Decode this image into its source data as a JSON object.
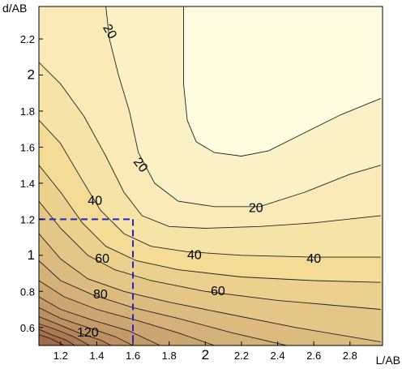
{
  "chart_data": {
    "type": "contour",
    "title": "",
    "xlabel": "L/AB",
    "ylabel": "d/AB",
    "xlim": [
      1.08,
      2.98
    ],
    "ylim": [
      0.5,
      2.38
    ],
    "xticks": [
      {
        "value": 1.2,
        "label": "1.2"
      },
      {
        "value": 1.4,
        "label": "1.4"
      },
      {
        "value": 1.6,
        "label": "1.6"
      },
      {
        "value": 1.8,
        "label": "1.8"
      },
      {
        "value": 2.0,
        "label": "2"
      },
      {
        "value": 2.2,
        "label": "2.2"
      },
      {
        "value": 2.4,
        "label": "2.4"
      },
      {
        "value": 2.6,
        "label": "2.6"
      },
      {
        "value": 2.8,
        "label": "2.8"
      }
    ],
    "yticks": [
      {
        "value": 0.6,
        "label": "0.6"
      },
      {
        "value": 0.8,
        "label": "0.8"
      },
      {
        "value": 1.0,
        "label": "1"
      },
      {
        "value": 1.2,
        "label": "1.2"
      },
      {
        "value": 1.4,
        "label": "1.4"
      },
      {
        "value": 1.6,
        "label": "1.6"
      },
      {
        "value": 1.8,
        "label": "1.8"
      },
      {
        "value": 2.0,
        "label": "2"
      },
      {
        "value": 2.2,
        "label": "2.2"
      }
    ],
    "contour_labels": [
      {
        "text": "20",
        "x": 1.47,
        "y": 2.24,
        "angle": 60
      },
      {
        "text": "20",
        "x": 1.64,
        "y": 1.5,
        "angle": 52
      },
      {
        "text": "20",
        "x": 2.28,
        "y": 1.26,
        "angle": 0
      },
      {
        "text": "40",
        "x": 1.39,
        "y": 1.3,
        "angle": 0
      },
      {
        "text": "40",
        "x": 1.94,
        "y": 1.0,
        "angle": 0
      },
      {
        "text": "40",
        "x": 2.6,
        "y": 0.98,
        "angle": 0
      },
      {
        "text": "60",
        "x": 1.43,
        "y": 0.98,
        "angle": 0
      },
      {
        "text": "60",
        "x": 2.07,
        "y": 0.8,
        "angle": 0
      },
      {
        "text": "80",
        "x": 1.42,
        "y": 0.78,
        "angle": 0
      },
      {
        "text": "120",
        "x": 1.35,
        "y": 0.57,
        "angle": 0
      }
    ],
    "contours": [
      {
        "level": 10,
        "points": [
          [
            1.88,
            2.38
          ],
          [
            1.88,
            1.95
          ],
          [
            1.9,
            1.75
          ],
          [
            1.95,
            1.63
          ],
          [
            2.05,
            1.57
          ],
          [
            2.2,
            1.55
          ],
          [
            2.35,
            1.58
          ],
          [
            2.55,
            1.68
          ],
          [
            2.75,
            1.78
          ],
          [
            2.97,
            1.87
          ]
        ]
      },
      {
        "level": 20,
        "points": [
          [
            1.45,
            2.38
          ],
          [
            1.47,
            2.2
          ],
          [
            1.52,
            2.0
          ],
          [
            1.58,
            1.8
          ],
          [
            1.63,
            1.57
          ],
          [
            1.72,
            1.4
          ],
          [
            1.85,
            1.3
          ],
          [
            2.05,
            1.27
          ],
          [
            2.3,
            1.27
          ],
          [
            2.55,
            1.35
          ],
          [
            2.8,
            1.45
          ],
          [
            2.97,
            1.5
          ]
        ]
      },
      {
        "level": 30,
        "points": [
          [
            1.08,
            2.07
          ],
          [
            1.2,
            1.95
          ],
          [
            1.33,
            1.77
          ],
          [
            1.45,
            1.55
          ],
          [
            1.55,
            1.35
          ],
          [
            1.65,
            1.22
          ],
          [
            1.8,
            1.16
          ],
          [
            2.0,
            1.15
          ],
          [
            2.3,
            1.16
          ],
          [
            2.6,
            1.18
          ],
          [
            2.97,
            1.22
          ]
        ]
      },
      {
        "level": 40,
        "points": [
          [
            1.08,
            1.75
          ],
          [
            1.2,
            1.62
          ],
          [
            1.3,
            1.45
          ],
          [
            1.42,
            1.25
          ],
          [
            1.55,
            1.12
          ],
          [
            1.7,
            1.05
          ],
          [
            1.9,
            1.02
          ],
          [
            2.2,
            1.0
          ],
          [
            2.6,
            0.99
          ],
          [
            2.97,
            0.99
          ]
        ]
      },
      {
        "level": 50,
        "points": [
          [
            1.08,
            1.5
          ],
          [
            1.2,
            1.35
          ],
          [
            1.32,
            1.18
          ],
          [
            1.45,
            1.05
          ],
          [
            1.62,
            0.97
          ],
          [
            1.85,
            0.92
          ],
          [
            2.2,
            0.88
          ],
          [
            2.6,
            0.86
          ],
          [
            2.97,
            0.85
          ]
        ]
      },
      {
        "level": 60,
        "points": [
          [
            1.08,
            1.3
          ],
          [
            1.2,
            1.15
          ],
          [
            1.35,
            1.0
          ],
          [
            1.5,
            0.92
          ],
          [
            1.7,
            0.86
          ],
          [
            2.0,
            0.8
          ],
          [
            2.4,
            0.75
          ],
          [
            2.97,
            0.7
          ]
        ]
      },
      {
        "level": 70,
        "points": [
          [
            1.08,
            1.12
          ],
          [
            1.2,
            0.98
          ],
          [
            1.35,
            0.87
          ],
          [
            1.55,
            0.8
          ],
          [
            1.8,
            0.74
          ],
          [
            2.1,
            0.68
          ],
          [
            2.5,
            0.6
          ],
          [
            2.97,
            0.52
          ]
        ]
      },
      {
        "level": 80,
        "points": [
          [
            1.08,
            0.97
          ],
          [
            1.2,
            0.86
          ],
          [
            1.38,
            0.78
          ],
          [
            1.6,
            0.71
          ],
          [
            1.85,
            0.65
          ],
          [
            2.15,
            0.57
          ],
          [
            2.45,
            0.5
          ]
        ]
      },
      {
        "level": 90,
        "points": [
          [
            1.08,
            0.86
          ],
          [
            1.22,
            0.77
          ],
          [
            1.4,
            0.7
          ],
          [
            1.62,
            0.64
          ],
          [
            1.85,
            0.57
          ],
          [
            2.05,
            0.5
          ]
        ]
      },
      {
        "level": 100,
        "points": [
          [
            1.08,
            0.77
          ],
          [
            1.2,
            0.7
          ],
          [
            1.38,
            0.64
          ],
          [
            1.58,
            0.58
          ],
          [
            1.75,
            0.5
          ]
        ]
      },
      {
        "level": 110,
        "points": [
          [
            1.08,
            0.71
          ],
          [
            1.2,
            0.65
          ],
          [
            1.35,
            0.6
          ],
          [
            1.5,
            0.55
          ],
          [
            1.6,
            0.5
          ]
        ]
      },
      {
        "level": 120,
        "points": [
          [
            1.08,
            0.66
          ],
          [
            1.18,
            0.62
          ],
          [
            1.3,
            0.57
          ],
          [
            1.42,
            0.53
          ],
          [
            1.48,
            0.5
          ]
        ]
      },
      {
        "level": 130,
        "points": [
          [
            1.08,
            0.62
          ],
          [
            1.17,
            0.59
          ],
          [
            1.27,
            0.55
          ],
          [
            1.36,
            0.5
          ]
        ]
      },
      {
        "level": 140,
        "points": [
          [
            1.08,
            0.59
          ],
          [
            1.15,
            0.56
          ],
          [
            1.23,
            0.53
          ],
          [
            1.28,
            0.5
          ]
        ]
      },
      {
        "level": 150,
        "points": [
          [
            1.08,
            0.56
          ],
          [
            1.14,
            0.54
          ],
          [
            1.2,
            0.51
          ],
          [
            1.22,
            0.5
          ]
        ]
      }
    ],
    "marker_lines": [
      {
        "x": [
          1.08,
          1.6
        ],
        "y": [
          1.2,
          1.2
        ]
      },
      {
        "x": [
          1.6,
          1.6
        ],
        "y": [
          1.2,
          0.5
        ]
      }
    ],
    "colors": {
      "low": "#fffce0",
      "mid": "#f4dc96",
      "high": "#a06a46",
      "marker": "#2222cc",
      "contour": "#222222"
    },
    "grid": false,
    "legend": "none"
  }
}
